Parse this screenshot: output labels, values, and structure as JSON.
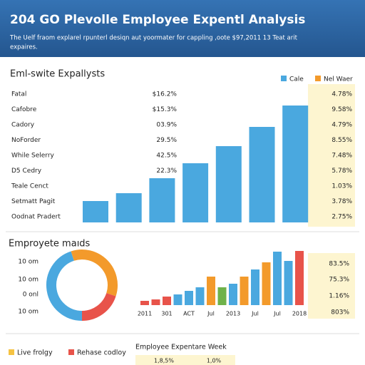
{
  "header": {
    "title": "204 GO Plevolle Employee Expentl Analysis",
    "subtitle_lines": [
      "The Uelf fraom explarel rpunterl desiqn aut yoormater for cappling ,oote $97,2011 13 Teat arit",
      "expaires."
    ]
  },
  "table": {
    "rows": [
      [
        "Fatal",
        "$16.2%",
        "4.78%"
      ],
      [
        "Cafobre",
        "$15.3%",
        "9.58%"
      ],
      [
        "Cadory",
        "03.9%",
        "4.79%"
      ],
      [
        "NoForder",
        "29.5%",
        "8.55%"
      ],
      [
        "While Selerry",
        "42.5%",
        "7.48%"
      ],
      [
        "D5 Cedry",
        "22.3%",
        "5.78%"
      ],
      [
        "Teale Cenct",
        null,
        "1.03%"
      ],
      [
        "Setmatt Pagit",
        null,
        "3.78%"
      ],
      [
        "Oodnat Pradert",
        null,
        "2.75%"
      ]
    ]
  },
  "chart_data": [
    {
      "type": "bar",
      "title": "Eml-swite Expallysts",
      "legend": [
        {
          "name": "Cale",
          "color": "#4aa8df"
        },
        {
          "name": "Nel Waer",
          "color": "#f39a2b"
        }
      ],
      "values": [
        30,
        41,
        62,
        83,
        107,
        134,
        164
      ],
      "color": "#4aa8df",
      "ylim": [
        0,
        180
      ]
    },
    {
      "type": "pie",
      "title": "Emproyete maıds",
      "side_labels": [
        "10 om",
        "10 om",
        "0 onl",
        "10 om"
      ],
      "values": [
        45,
        35,
        20
      ],
      "colors": [
        "#4aa8df",
        "#f39a2b",
        "#e8534a"
      ]
    },
    {
      "type": "bar",
      "categories": [
        "2011",
        null,
        "301",
        null,
        "ACT",
        null,
        "Jul",
        null,
        "2013",
        null,
        "Jul",
        null,
        "Jul",
        null,
        "2018"
      ],
      "values": [
        6,
        8,
        12,
        15,
        20,
        25,
        40,
        25,
        30,
        40,
        50,
        60,
        75,
        62,
        76
      ],
      "colors": [
        "#e8534a",
        "#e8534a",
        "#e8534a",
        "#4aa8df",
        "#4aa8df",
        "#4aa8df",
        "#f39a2b",
        "#6fb24a",
        "#4aa8df",
        "#f39a2b",
        "#4aa8df",
        "#f39a2b",
        "#4aa8df",
        "#4aa8df",
        "#e8534a"
      ],
      "ylim": [
        0,
        80
      ],
      "side_values": [
        "83.5%",
        "75.3%",
        "1.16%",
        "803%"
      ]
    }
  ],
  "footer": {
    "legend": [
      {
        "name": "Live frolgy",
        "color": "#f5c242"
      },
      {
        "name": "Rehase codloy",
        "color": "#e8534a"
      }
    ],
    "title": "Employee Expentare Week",
    "values": [
      "1,8,5%",
      "1,0%"
    ]
  }
}
